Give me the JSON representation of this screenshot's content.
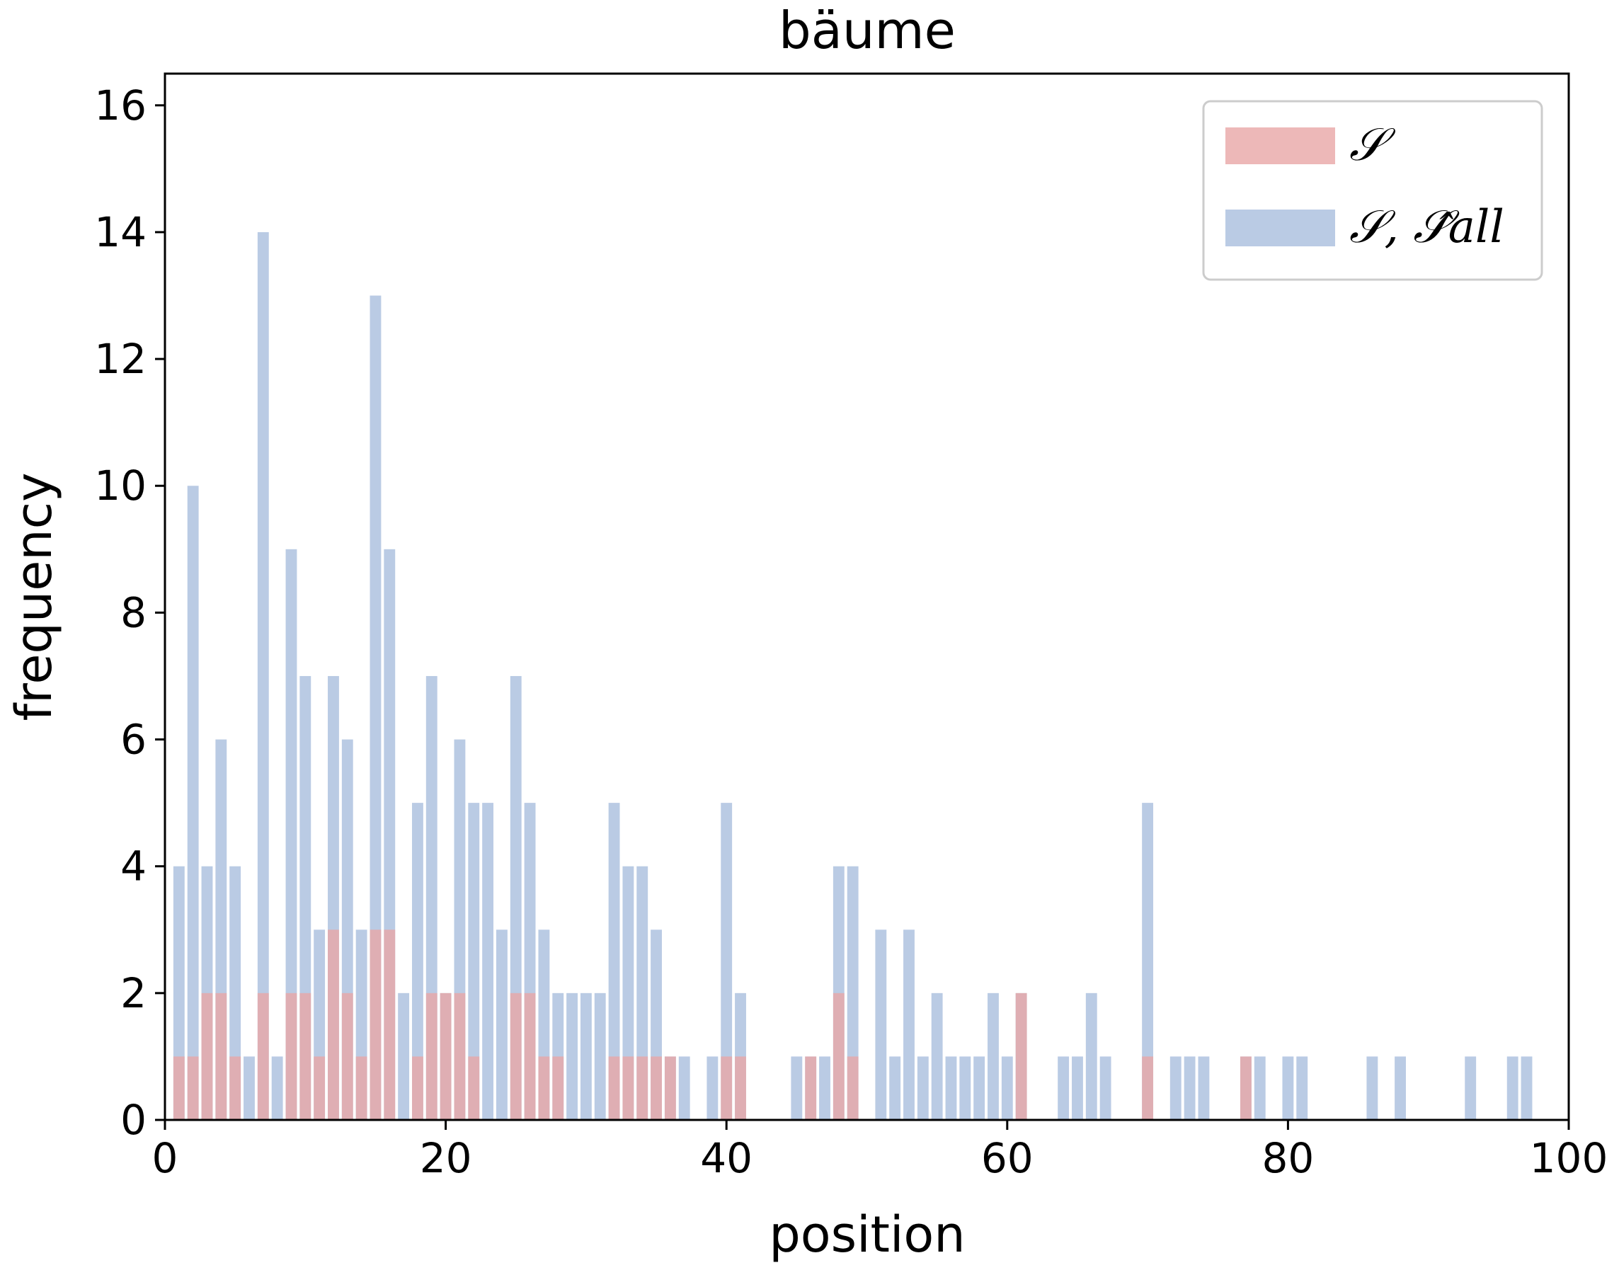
{
  "chart_data": {
    "type": "bar",
    "title": "bäume",
    "xlabel": "position",
    "ylabel": "frequency",
    "xlim": [
      0,
      100
    ],
    "ylim": [
      0,
      16.5
    ],
    "xticks": [
      "0",
      "20",
      "40",
      "60",
      "80",
      "100"
    ],
    "yticks": [
      "0",
      "2",
      "4",
      "6",
      "8",
      "10",
      "12",
      "14",
      "16"
    ],
    "legend_position": "top-right",
    "grid": false,
    "colors": {
      "s": "#e8a6a6",
      "s_all": "#a9bedd"
    },
    "series": [
      {
        "name": "𝒮",
        "x": [
          1,
          2,
          3,
          4,
          5,
          7,
          9,
          10,
          11,
          12,
          13,
          14,
          15,
          16,
          18,
          19,
          20,
          21,
          22,
          25,
          26,
          27,
          28,
          32,
          33,
          34,
          35,
          36,
          40,
          41,
          46,
          48,
          49,
          61,
          70,
          77
        ],
        "values": [
          1,
          1,
          2,
          2,
          1,
          2,
          2,
          2,
          1,
          3,
          2,
          1,
          3,
          3,
          1,
          2,
          2,
          2,
          1,
          2,
          2,
          1,
          1,
          1,
          1,
          1,
          1,
          1,
          1,
          1,
          1,
          2,
          1,
          2,
          1,
          1
        ]
      },
      {
        "name": "𝒮, 𝒮̂all",
        "x": [
          1,
          2,
          3,
          4,
          5,
          6,
          7,
          8,
          9,
          10,
          11,
          12,
          13,
          14,
          15,
          16,
          17,
          18,
          19,
          20,
          21,
          22,
          23,
          24,
          25,
          26,
          27,
          28,
          29,
          30,
          31,
          32,
          33,
          34,
          35,
          36,
          37,
          39,
          40,
          41,
          45,
          46,
          47,
          48,
          49,
          51,
          52,
          53,
          54,
          55,
          56,
          57,
          58,
          59,
          60,
          61,
          64,
          65,
          66,
          67,
          70,
          72,
          73,
          74,
          77,
          78,
          80,
          81,
          86,
          88,
          93,
          96,
          97
        ],
        "values": [
          4,
          10,
          4,
          6,
          4,
          1,
          14,
          1,
          9,
          7,
          3,
          7,
          6,
          3,
          13,
          9,
          2,
          5,
          7,
          2,
          6,
          5,
          5,
          3,
          7,
          5,
          3,
          2,
          2,
          2,
          2,
          5,
          4,
          4,
          3,
          1,
          1,
          1,
          5,
          2,
          1,
          1,
          1,
          4,
          4,
          3,
          1,
          3,
          1,
          2,
          1,
          1,
          1,
          2,
          1,
          2,
          1,
          1,
          2,
          1,
          5,
          1,
          1,
          1,
          1,
          1,
          1,
          1,
          1,
          1,
          1,
          1,
          1
        ]
      }
    ]
  }
}
